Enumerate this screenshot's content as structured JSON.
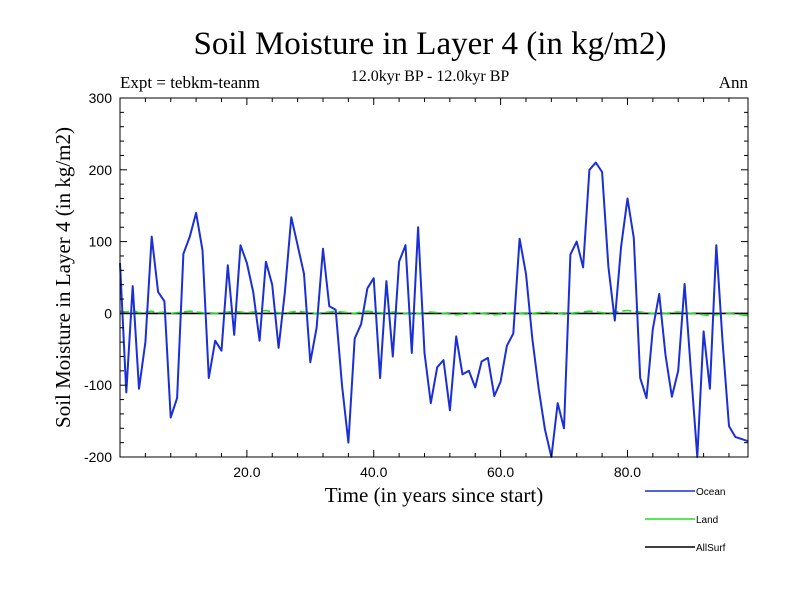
{
  "header": {
    "title": "Soil Moisture in Layer 4 (in kg/m2)",
    "subtitle": "12.0kyr BP - 12.0kyr BP",
    "expt": "Expt = tebkm-teanm",
    "period": "Ann"
  },
  "chart_data": {
    "type": "line",
    "title": "Soil Moisture in Layer 4 (in kg/m2)",
    "xlabel": "Time (in years since start)",
    "ylabel": "Soil Moisture in Layer 4 (in kg/m2)",
    "xlim": [
      0,
      99
    ],
    "ylim": [
      -200,
      300
    ],
    "x_ticks": [
      20,
      40,
      60,
      80
    ],
    "x_tick_labels": [
      "20.0",
      "40.0",
      "60.0",
      "80.0"
    ],
    "y_ticks": [
      -200,
      -100,
      0,
      100,
      200,
      300
    ],
    "y_tick_labels": [
      "-200",
      "-100",
      "0",
      "100",
      "200",
      "300"
    ],
    "x": [
      0,
      1,
      2,
      3,
      4,
      5,
      6,
      7,
      8,
      9,
      10,
      11,
      12,
      13,
      14,
      15,
      16,
      17,
      18,
      19,
      20,
      21,
      22,
      23,
      24,
      25,
      26,
      27,
      28,
      29,
      30,
      31,
      32,
      33,
      34,
      35,
      36,
      37,
      38,
      39,
      40,
      41,
      42,
      43,
      44,
      45,
      46,
      47,
      48,
      49,
      50,
      51,
      52,
      53,
      54,
      55,
      56,
      57,
      58,
      59,
      60,
      61,
      62,
      63,
      64,
      65,
      66,
      67,
      68,
      69,
      70,
      71,
      72,
      73,
      74,
      75,
      76,
      77,
      78,
      79,
      80,
      81,
      82,
      83,
      84,
      85,
      86,
      87,
      88,
      89,
      90,
      91,
      92,
      93,
      94,
      95,
      96,
      97,
      98,
      99
    ],
    "series": [
      {
        "name": "Ocean",
        "color": "#1a2fd6",
        "values": [
          70,
          -110,
          38,
          -105,
          -40,
          107,
          30,
          17,
          -145,
          -118,
          83,
          107,
          140,
          88,
          -90,
          -38,
          -52,
          67,
          -30,
          95,
          70,
          30,
          -38,
          72,
          40,
          -48,
          30,
          134,
          95,
          55,
          -68,
          -20,
          90,
          10,
          5,
          -100,
          -180,
          -35,
          -15,
          35,
          49,
          -90,
          45,
          -60,
          72,
          95,
          -55,
          120,
          -55,
          -125,
          -75,
          -65,
          -135,
          -32,
          -85,
          -80,
          -103,
          -67,
          -62,
          -115,
          -95,
          -45,
          -28,
          104,
          55,
          -35,
          -105,
          -162,
          -200,
          -125,
          -160,
          82,
          100,
          64,
          200,
          210,
          197,
          65,
          -10,
          93,
          160,
          105,
          -90,
          -118,
          -22,
          27,
          -58,
          -116,
          -80,
          41,
          -80,
          -200,
          -25,
          -105,
          95,
          -40,
          -157,
          -172,
          -175,
          -178
        ],
        "dashed": false
      },
      {
        "name": "Land",
        "color": "#22dd22",
        "values": [
          3,
          2,
          4,
          1,
          2,
          3,
          1,
          2,
          0,
          1,
          2,
          3,
          2,
          1,
          -1,
          0,
          1,
          2,
          3,
          2,
          1,
          2,
          3,
          4,
          2,
          1,
          0,
          2,
          3,
          2,
          1,
          0,
          1,
          2,
          3,
          2,
          1,
          0,
          2,
          3,
          2,
          1,
          0,
          2,
          1,
          0,
          -1,
          0,
          1,
          2,
          1,
          0,
          -1,
          -2,
          -1,
          0,
          1,
          0,
          -1,
          -2,
          -1,
          0,
          1,
          0,
          -1,
          0,
          1,
          2,
          1,
          0,
          -1,
          0,
          1,
          2,
          3,
          2,
          1,
          0,
          2,
          3,
          4,
          3,
          2,
          1,
          0,
          -1,
          0,
          1,
          2,
          1,
          0,
          -1,
          -2,
          -3,
          -2,
          -1,
          0,
          -1,
          -2,
          -3
        ],
        "dashed": true
      },
      {
        "name": "AllSurf",
        "color": "#000000",
        "values": [
          0,
          0,
          0,
          0,
          0,
          0,
          0,
          0,
          0,
          0,
          0,
          0,
          0,
          0,
          0,
          0,
          0,
          0,
          0,
          0,
          0,
          0,
          0,
          0,
          0,
          0,
          0,
          0,
          0,
          0,
          0,
          0,
          0,
          0,
          0,
          0,
          0,
          0,
          0,
          0,
          0,
          0,
          0,
          0,
          0,
          0,
          0,
          0,
          0,
          0,
          0,
          0,
          0,
          0,
          0,
          0,
          0,
          0,
          0,
          0,
          0,
          0,
          0,
          0,
          0,
          0,
          0,
          0,
          0,
          0,
          0,
          0,
          0,
          0,
          0,
          0,
          0,
          0,
          0,
          0,
          0,
          0,
          0,
          0,
          0,
          0,
          0,
          0,
          0,
          0,
          0,
          0,
          0,
          0,
          0,
          0,
          0,
          0,
          0,
          0
        ],
        "dashed": false
      }
    ],
    "legend": [
      "Ocean",
      "Land",
      "AllSurf"
    ],
    "legend_position": "bottom-right"
  }
}
